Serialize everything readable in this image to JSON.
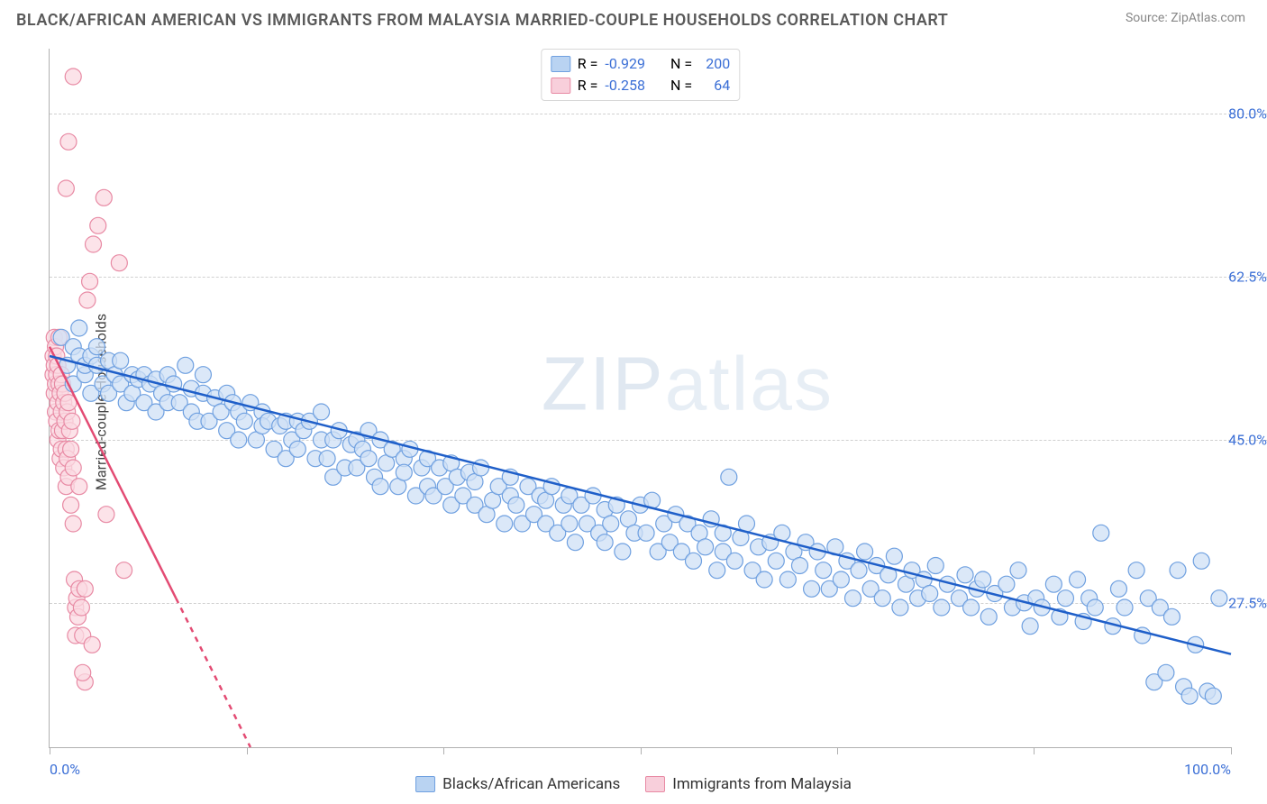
{
  "title": "BLACK/AFRICAN AMERICAN VS IMMIGRANTS FROM MALAYSIA MARRIED-COUPLE HOUSEHOLDS CORRELATION CHART",
  "source": "Source: ZipAtlas.com",
  "ylabel": "Married-couple Households",
  "watermark_bold": "ZIP",
  "watermark_thin": "atlas",
  "chart": {
    "type": "scatter",
    "xlim": [
      0,
      100
    ],
    "ylim": [
      12,
      87
    ],
    "x_tick_positions": [
      0,
      16.67,
      33.33,
      50,
      66.67,
      83.33,
      100
    ],
    "x_tick_labels_shown": {
      "0": "0.0%",
      "100": "100.0%"
    },
    "y_ticks": [
      27.5,
      45.0,
      62.5,
      80.0
    ],
    "y_tick_labels": [
      "27.5%",
      "45.0%",
      "62.5%",
      "80.0%"
    ],
    "grid_color": "#d0d0d0",
    "axis_color": "#b0b0b0",
    "background": "#ffffff",
    "xtick_label_color": "#3b6fd6",
    "ytick_label_color": "#3b6fd6",
    "marker_radius": 9,
    "marker_stroke_width": 1.2,
    "trend_line_width": 2.5
  },
  "series": {
    "blue": {
      "label": "Blacks/African Americans",
      "fill": "#cfe0f6",
      "stroke": "#6fa0e0",
      "swatch_fill": "#b9d3f2",
      "swatch_stroke": "#6fa0e0",
      "line_color": "#1f5fc9",
      "R": "-0.929",
      "N": "200",
      "trend": {
        "x1": 0,
        "y1": 54,
        "x2": 100,
        "y2": 22
      },
      "points": [
        [
          1,
          56
        ],
        [
          1.5,
          53
        ],
        [
          2,
          55
        ],
        [
          2,
          51
        ],
        [
          2.5,
          54
        ],
        [
          2.5,
          57
        ],
        [
          3,
          52
        ],
        [
          3,
          53
        ],
        [
          3.5,
          54
        ],
        [
          3.5,
          50
        ],
        [
          4,
          53
        ],
        [
          4,
          55
        ],
        [
          4.5,
          51
        ],
        [
          5,
          50
        ],
        [
          5,
          53.5
        ],
        [
          5.5,
          52
        ],
        [
          6,
          51
        ],
        [
          6,
          53.5
        ],
        [
          6.5,
          49
        ],
        [
          7,
          52
        ],
        [
          7,
          50
        ],
        [
          7.5,
          51.5
        ],
        [
          8,
          49
        ],
        [
          8,
          52
        ],
        [
          8.5,
          51
        ],
        [
          9,
          48
        ],
        [
          9,
          51.5
        ],
        [
          9.5,
          50
        ],
        [
          10,
          52
        ],
        [
          10,
          49
        ],
        [
          10.5,
          51
        ],
        [
          11,
          49
        ],
        [
          11.5,
          53
        ],
        [
          12,
          48
        ],
        [
          12,
          50.5
        ],
        [
          12.5,
          47
        ],
        [
          13,
          50
        ],
        [
          13,
          52
        ],
        [
          13.5,
          47
        ],
        [
          14,
          49.5
        ],
        [
          14.5,
          48
        ],
        [
          15,
          50
        ],
        [
          15,
          46
        ],
        [
          15.5,
          49
        ],
        [
          16,
          45
        ],
        [
          16,
          48
        ],
        [
          16.5,
          47
        ],
        [
          17,
          49
        ],
        [
          17.5,
          45
        ],
        [
          18,
          48
        ],
        [
          18,
          46.5
        ],
        [
          18.5,
          47
        ],
        [
          19,
          44
        ],
        [
          19.5,
          46.5
        ],
        [
          20,
          47
        ],
        [
          20,
          43
        ],
        [
          20.5,
          45
        ],
        [
          21,
          47
        ],
        [
          21,
          44
        ],
        [
          21.5,
          46
        ],
        [
          22,
          47
        ],
        [
          22.5,
          43
        ],
        [
          23,
          45
        ],
        [
          23,
          48
        ],
        [
          23.5,
          43
        ],
        [
          24,
          41
        ],
        [
          24,
          45
        ],
        [
          24.5,
          46
        ],
        [
          25,
          42
        ],
        [
          25.5,
          44.5
        ],
        [
          26,
          45
        ],
        [
          26,
          42
        ],
        [
          26.5,
          44
        ],
        [
          27,
          46
        ],
        [
          27,
          43
        ],
        [
          27.5,
          41
        ],
        [
          28,
          45
        ],
        [
          28,
          40
        ],
        [
          28.5,
          42.5
        ],
        [
          29,
          44
        ],
        [
          29.5,
          40
        ],
        [
          30,
          43
        ],
        [
          30,
          41.5
        ],
        [
          30.5,
          44
        ],
        [
          31,
          39
        ],
        [
          31.5,
          42
        ],
        [
          32,
          43
        ],
        [
          32,
          40
        ],
        [
          32.5,
          39
        ],
        [
          33,
          42
        ],
        [
          33.5,
          40
        ],
        [
          34,
          42.5
        ],
        [
          34,
          38
        ],
        [
          34.5,
          41
        ],
        [
          35,
          39
        ],
        [
          35.5,
          41.5
        ],
        [
          36,
          38
        ],
        [
          36,
          40.5
        ],
        [
          36.5,
          42
        ],
        [
          37,
          37
        ],
        [
          37.5,
          38.5
        ],
        [
          38,
          40
        ],
        [
          38.5,
          36
        ],
        [
          39,
          39
        ],
        [
          39,
          41
        ],
        [
          39.5,
          38
        ],
        [
          40,
          36
        ],
        [
          40.5,
          40
        ],
        [
          41,
          37
        ],
        [
          41.5,
          39
        ],
        [
          42,
          36
        ],
        [
          42,
          38.5
        ],
        [
          42.5,
          40
        ],
        [
          43,
          35
        ],
        [
          43.5,
          38
        ],
        [
          44,
          36
        ],
        [
          44,
          39
        ],
        [
          44.5,
          34
        ],
        [
          45,
          38
        ],
        [
          45.5,
          36
        ],
        [
          46,
          39
        ],
        [
          46.5,
          35
        ],
        [
          47,
          37.5
        ],
        [
          47,
          34
        ],
        [
          47.5,
          36
        ],
        [
          48,
          38
        ],
        [
          48.5,
          33
        ],
        [
          49,
          36.5
        ],
        [
          49.5,
          35
        ],
        [
          50,
          38
        ],
        [
          50.5,
          35
        ],
        [
          51,
          38.5
        ],
        [
          51.5,
          33
        ],
        [
          52,
          36
        ],
        [
          52.5,
          34
        ],
        [
          53,
          37
        ],
        [
          53.5,
          33
        ],
        [
          54,
          36
        ],
        [
          54.5,
          32
        ],
        [
          55,
          35
        ],
        [
          55.5,
          33.5
        ],
        [
          56,
          36.5
        ],
        [
          56.5,
          31
        ],
        [
          57,
          35
        ],
        [
          57,
          33
        ],
        [
          57.5,
          41
        ],
        [
          58,
          32
        ],
        [
          58.5,
          34.5
        ],
        [
          59,
          36
        ],
        [
          59.5,
          31
        ],
        [
          60,
          33.5
        ],
        [
          60.5,
          30
        ],
        [
          61,
          34
        ],
        [
          61.5,
          32
        ],
        [
          62,
          35
        ],
        [
          62.5,
          30
        ],
        [
          63,
          33
        ],
        [
          63.5,
          31.5
        ],
        [
          64,
          34
        ],
        [
          64.5,
          29
        ],
        [
          65,
          33
        ],
        [
          65.5,
          31
        ],
        [
          66,
          29
        ],
        [
          66.5,
          33.5
        ],
        [
          67,
          30
        ],
        [
          67.5,
          32
        ],
        [
          68,
          28
        ],
        [
          68.5,
          31
        ],
        [
          69,
          33
        ],
        [
          69.5,
          29
        ],
        [
          70,
          31.5
        ],
        [
          70.5,
          28
        ],
        [
          71,
          30.5
        ],
        [
          71.5,
          32.5
        ],
        [
          72,
          27
        ],
        [
          72.5,
          29.5
        ],
        [
          73,
          31
        ],
        [
          73.5,
          28
        ],
        [
          74,
          30
        ],
        [
          74.5,
          28.5
        ],
        [
          75,
          31.5
        ],
        [
          75.5,
          27
        ],
        [
          76,
          29.5
        ],
        [
          77,
          28
        ],
        [
          77.5,
          30.5
        ],
        [
          78,
          27
        ],
        [
          78.5,
          29
        ],
        [
          79,
          30
        ],
        [
          79.5,
          26
        ],
        [
          80,
          28.5
        ],
        [
          81,
          29.5
        ],
        [
          81.5,
          27
        ],
        [
          82,
          31
        ],
        [
          82.5,
          27.5
        ],
        [
          83,
          25
        ],
        [
          83.5,
          28
        ],
        [
          84,
          27
        ],
        [
          85,
          29.5
        ],
        [
          85.5,
          26
        ],
        [
          86,
          28
        ],
        [
          87,
          30
        ],
        [
          87.5,
          25.5
        ],
        [
          88,
          28
        ],
        [
          88.5,
          27
        ],
        [
          89,
          35
        ],
        [
          90,
          25
        ],
        [
          90.5,
          29
        ],
        [
          91,
          27
        ],
        [
          92,
          31
        ],
        [
          92.5,
          24
        ],
        [
          93,
          28
        ],
        [
          93.5,
          19
        ],
        [
          94,
          27
        ],
        [
          94.5,
          20
        ],
        [
          95,
          26
        ],
        [
          95.5,
          31
        ],
        [
          96,
          18.5
        ],
        [
          96.5,
          17.5
        ],
        [
          97,
          23
        ],
        [
          97.5,
          32
        ],
        [
          98,
          18
        ],
        [
          98.5,
          17.5
        ],
        [
          99,
          28
        ]
      ]
    },
    "pink": {
      "label": "Immigrants from Malaysia",
      "fill": "#fbd9e2",
      "stroke": "#e88aa4",
      "swatch_fill": "#f8cfdb",
      "swatch_stroke": "#e88aa4",
      "line_color": "#e34b73",
      "R": "-0.258",
      "N": "64",
      "trend_solid": {
        "x1": 0,
        "y1": 55,
        "x2": 10.7,
        "y2": 28
      },
      "trend_dash": {
        "x1": 10.7,
        "y1": 28,
        "x2": 17,
        "y2": 12
      },
      "points": [
        [
          0.3,
          54
        ],
        [
          0.3,
          52
        ],
        [
          0.4,
          56
        ],
        [
          0.4,
          53
        ],
        [
          0.4,
          50
        ],
        [
          0.5,
          55
        ],
        [
          0.5,
          51
        ],
        [
          0.5,
          48
        ],
        [
          0.6,
          54
        ],
        [
          0.6,
          52
        ],
        [
          0.6,
          47
        ],
        [
          0.7,
          53
        ],
        [
          0.7,
          49
        ],
        [
          0.7,
          45
        ],
        [
          0.8,
          51
        ],
        [
          0.8,
          56
        ],
        [
          0.8,
          46
        ],
        [
          0.9,
          50
        ],
        [
          0.9,
          43
        ],
        [
          1.0,
          52
        ],
        [
          1.0,
          48
        ],
        [
          1.0,
          44
        ],
        [
          1.1,
          51
        ],
        [
          1.1,
          46
        ],
        [
          1.2,
          49
        ],
        [
          1.2,
          42
        ],
        [
          1.3,
          50
        ],
        [
          1.3,
          47
        ],
        [
          1.4,
          44
        ],
        [
          1.4,
          40
        ],
        [
          1.5,
          48
        ],
        [
          1.5,
          43
        ],
        [
          1.6,
          49
        ],
        [
          1.6,
          41
        ],
        [
          1.7,
          46
        ],
        [
          1.8,
          44
        ],
        [
          1.8,
          38
        ],
        [
          1.9,
          47
        ],
        [
          2.0,
          42
        ],
        [
          2.0,
          36
        ],
        [
          2.1,
          30
        ],
        [
          2.2,
          27
        ],
        [
          2.2,
          24
        ],
        [
          2.3,
          28
        ],
        [
          2.4,
          26
        ],
        [
          2.5,
          29
        ],
        [
          2.5,
          40
        ],
        [
          2.7,
          27
        ],
        [
          2.8,
          24
        ],
        [
          3.0,
          29
        ],
        [
          3.2,
          60
        ],
        [
          3.4,
          62
        ],
        [
          3.7,
          66
        ],
        [
          4.1,
          68
        ],
        [
          4.6,
          71
        ],
        [
          4.8,
          37
        ],
        [
          5.9,
          64
        ],
        [
          6.3,
          31
        ],
        [
          3.0,
          19
        ],
        [
          2.8,
          20
        ],
        [
          3.6,
          23
        ],
        [
          2.0,
          84
        ],
        [
          1.6,
          77
        ],
        [
          1.4,
          72
        ]
      ]
    }
  },
  "stats_label": {
    "R": "R =",
    "N": "N ="
  }
}
